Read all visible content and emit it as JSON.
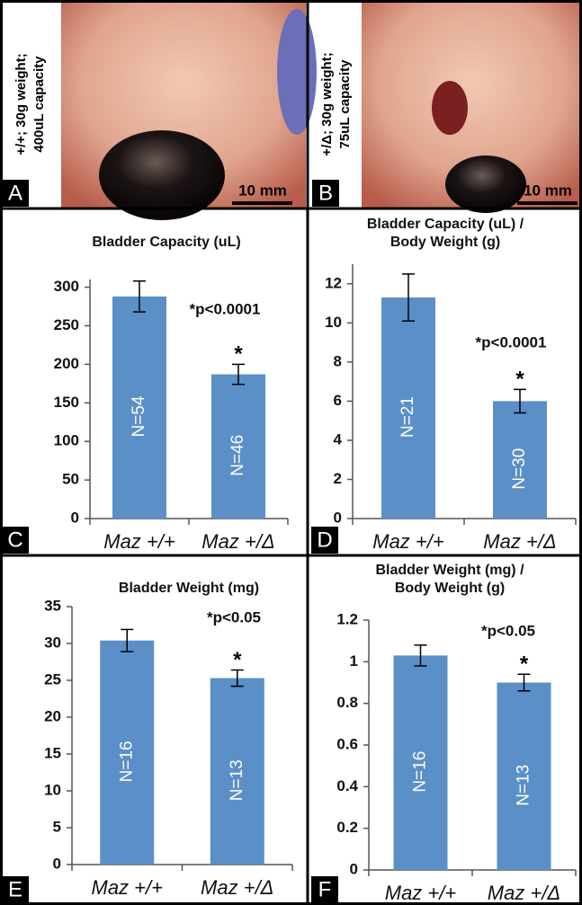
{
  "photos": [
    {
      "letter": "A",
      "caption": [
        "+/+; 30g weight;",
        "400uL capacity"
      ],
      "scale": "10 mm"
    },
    {
      "letter": "B",
      "caption": [
        "+/Δ; 30g weight;",
        "75uL capacity"
      ],
      "scale": "10 mm"
    }
  ],
  "chart_data": [
    {
      "type": "bar",
      "letter": "C",
      "title": [
        "Bladder Capacity (uL)"
      ],
      "categories": [
        "Maz +/+",
        "Maz +/Δ"
      ],
      "values": [
        288,
        187
      ],
      "errors": [
        20,
        13
      ],
      "n_labels": [
        "N=54",
        "N=46"
      ],
      "star": "*",
      "annotation": "*p<0.0001",
      "color": "#5b8fc7",
      "ylim": [
        0,
        310
      ],
      "yticks": [
        0,
        50,
        100,
        150,
        200,
        250,
        300
      ]
    },
    {
      "type": "bar",
      "letter": "D",
      "title": [
        "Bladder Capacity (uL) /",
        "Body Weight (g)"
      ],
      "categories": [
        "Maz +/+",
        "Maz +/Δ"
      ],
      "values": [
        11.3,
        6.0
      ],
      "errors": [
        1.2,
        0.6
      ],
      "n_labels": [
        "N=21",
        "N=30"
      ],
      "star": "*",
      "annotation": "*p<0.0001",
      "color": "#5b8fc7",
      "ylim": [
        0,
        13
      ],
      "yticks": [
        0,
        2,
        4,
        6,
        8,
        10,
        12
      ]
    },
    {
      "type": "bar",
      "letter": "E",
      "title": [
        "Bladder Weight (mg)"
      ],
      "categories": [
        "Maz +/+",
        "Maz +/Δ"
      ],
      "values": [
        30.4,
        25.3
      ],
      "errors": [
        1.5,
        1.1
      ],
      "n_labels": [
        "N=16",
        "N=13"
      ],
      "star": "*",
      "annotation": "*p<0.05",
      "color": "#5b8fc7",
      "ylim": [
        0,
        35
      ],
      "yticks": [
        0,
        5,
        10,
        15,
        20,
        25,
        30,
        35
      ]
    },
    {
      "type": "bar",
      "letter": "F",
      "title": [
        "Bladder Weight (mg) /",
        "Body Weight (g)"
      ],
      "categories": [
        "Maz +/+",
        "Maz +/Δ"
      ],
      "values": [
        1.03,
        0.9
      ],
      "errors": [
        0.05,
        0.04
      ],
      "n_labels": [
        "N=16",
        "N=13"
      ],
      "star": "*",
      "annotation": "*p<0.05",
      "color": "#5b8fc7",
      "ylim": [
        0,
        1.2
      ],
      "yticks": [
        0,
        0.2,
        0.4,
        0.6,
        0.8,
        1,
        1.2
      ]
    }
  ]
}
